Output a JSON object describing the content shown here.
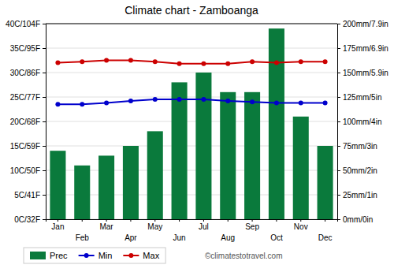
{
  "chart_data": {
    "type": "bar",
    "title": "Climate chart - Zamboanga",
    "categories": [
      "Jan",
      "Feb",
      "Mar",
      "Apr",
      "May",
      "Jun",
      "Jul",
      "Aug",
      "Sep",
      "Oct",
      "Nov",
      "Dec"
    ],
    "series": [
      {
        "name": "Prec",
        "type": "bar",
        "axis": "y2",
        "color": "#0a7a3c",
        "values": [
          70,
          55,
          65,
          75,
          90,
          140,
          150,
          130,
          130,
          195,
          105,
          75
        ]
      },
      {
        "name": "Min",
        "type": "line",
        "marker": "circle",
        "color": "#0000cc",
        "values": [
          23.5,
          23.5,
          23.8,
          24.2,
          24.5,
          24.5,
          24.5,
          24.2,
          24.0,
          23.8,
          23.8,
          23.8
        ]
      },
      {
        "name": "Max",
        "type": "line",
        "marker": "circle",
        "color": "#cc0000",
        "values": [
          32.0,
          32.2,
          32.5,
          32.5,
          32.2,
          31.8,
          31.8,
          31.8,
          32.2,
          32.0,
          32.2,
          32.2
        ]
      }
    ],
    "ylim": [
      0,
      40
    ],
    "yticks": [
      {
        "value": 0,
        "label": "0C/32F"
      },
      {
        "value": 5,
        "label": "5C/41F"
      },
      {
        "value": 10,
        "label": "10C/50F"
      },
      {
        "value": 15,
        "label": "15C/59F"
      },
      {
        "value": 20,
        "label": "20C/68F"
      },
      {
        "value": 25,
        "label": "25C/77F"
      },
      {
        "value": 30,
        "label": "30C/86F"
      },
      {
        "value": 35,
        "label": "35C/95F"
      },
      {
        "value": 40,
        "label": "40C/104F"
      }
    ],
    "y2lim": [
      0,
      200
    ],
    "y2ticks": [
      {
        "value": 0,
        "label": "0mm/0in"
      },
      {
        "value": 25,
        "label": "25mm/1in"
      },
      {
        "value": 50,
        "label": "50mm/2in"
      },
      {
        "value": 75,
        "label": "75mm/3in"
      },
      {
        "value": 100,
        "label": "100mm/4in"
      },
      {
        "value": 125,
        "label": "125mm/5in"
      },
      {
        "value": 150,
        "label": "150mm/5.9in"
      },
      {
        "value": 175,
        "label": "175mm/6.9in"
      },
      {
        "value": 200,
        "label": "200mm/7.9in"
      }
    ],
    "grid": true,
    "legend": "bottom",
    "annotations": [
      "©climatestotravel.com"
    ]
  }
}
